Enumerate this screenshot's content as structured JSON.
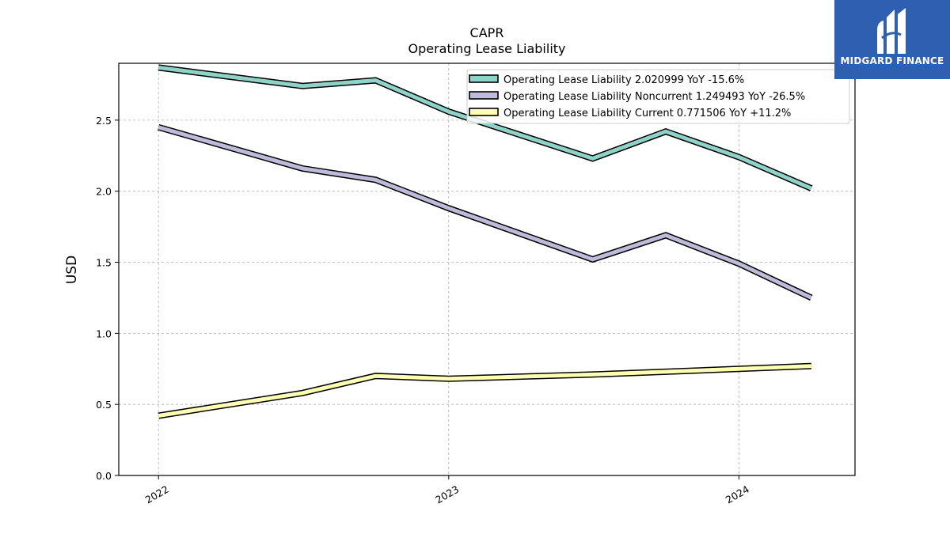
{
  "chart_data": {
    "type": "line",
    "title": "CAPR",
    "subtitle": "Operating Lease Liability",
    "xlabel": "",
    "ylabel": "USD",
    "x_tick_labels": [
      "2022",
      "2023",
      "2024"
    ],
    "y_tick_labels": [
      "0.0",
      "0.5",
      "1.0",
      "1.5",
      "2.0",
      "2.5"
    ],
    "ylim": [
      0,
      2.9
    ],
    "grid": true,
    "legend_position": "top-right",
    "x": [
      "2022-01-01",
      "2022-07-01",
      "2022-10-01",
      "2023-01-01",
      "2023-07-01",
      "2023-10-01",
      "2024-01-01",
      "2024-04-01"
    ],
    "series": [
      {
        "name": "Operating Lease Liability  2.020999 YoY -15.6%",
        "color": "#8dd3c7",
        "values": [
          2.87,
          2.74,
          2.78,
          2.56,
          2.23,
          2.42,
          2.24,
          2.02
        ]
      },
      {
        "name": "Operating Lease Liability Noncurrent  1.249493 YoY -26.5%",
        "color": "#bebada",
        "values": [
          2.45,
          2.16,
          2.08,
          1.88,
          1.52,
          1.69,
          1.49,
          1.25
        ]
      },
      {
        "name": "Operating Lease Liability Current  0.771506 YoY +11.2%",
        "color": "#ffffb3",
        "values": [
          0.42,
          0.58,
          0.7,
          0.68,
          0.71,
          0.73,
          0.75,
          0.77
        ]
      }
    ]
  },
  "logo": {
    "text": "MIDGARD FINANCE",
    "background": "#2f5fb0"
  }
}
